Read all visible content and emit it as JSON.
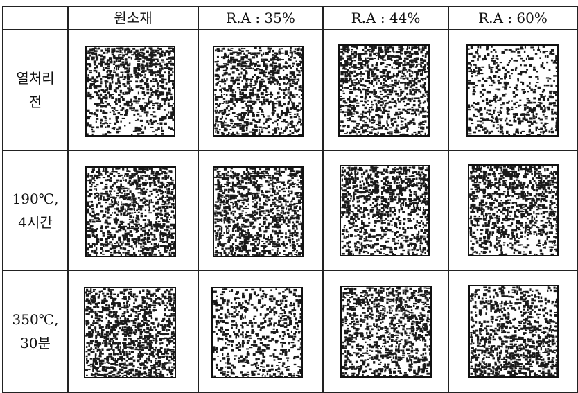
{
  "table": {
    "columns": [
      "원소재",
      "R.A : 35%",
      "R.A : 44%",
      "R.A : 60%"
    ],
    "rows": [
      {
        "label": "열처리\n전"
      },
      {
        "label": "190℃,\n4시간"
      },
      {
        "label": "350℃,\n30분"
      }
    ],
    "micrograph_icon": "microstructure-texture",
    "colors": {
      "ink": "#111111",
      "grain_dark": "#1a1a1a",
      "background": "#ffffff"
    }
  }
}
